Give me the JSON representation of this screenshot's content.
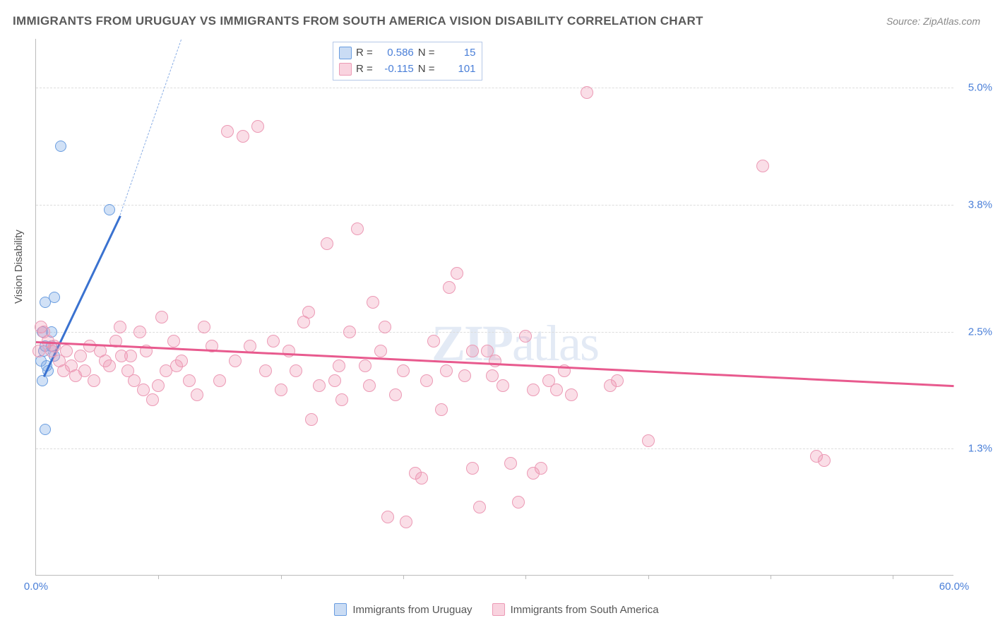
{
  "header": {
    "title": "IMMIGRANTS FROM URUGUAY VS IMMIGRANTS FROM SOUTH AMERICA VISION DISABILITY CORRELATION CHART",
    "source": "Source: ZipAtlas.com"
  },
  "chart": {
    "type": "scatter",
    "ylabel": "Vision Disability",
    "watermark": "ZIPatlas",
    "background_color": "#ffffff",
    "grid_color": "#dddddd",
    "axis_color": "#bbbbbb",
    "tick_color": "#4a7fd8",
    "xlim": [
      0,
      60
    ],
    "ylim": [
      0,
      5.5
    ],
    "xticks": [
      {
        "pos": 0,
        "label": "0.0%"
      },
      {
        "pos": 60,
        "label": "60.0%"
      }
    ],
    "xtick_marks": [
      8,
      16,
      24,
      32,
      40,
      48,
      56
    ],
    "yticks": [
      {
        "pos": 1.3,
        "label": "1.3%"
      },
      {
        "pos": 2.5,
        "label": "2.5%"
      },
      {
        "pos": 3.8,
        "label": "3.8%"
      },
      {
        "pos": 5.0,
        "label": "5.0%"
      }
    ],
    "series": [
      {
        "name": "Immigrants from Uruguay",
        "color_fill": "rgba(122,168,228,0.35)",
        "color_stroke": "#6a9de0",
        "trend_color": "#3a72d0",
        "marker_size": 16,
        "R": "0.586",
        "N": "15",
        "trend": {
          "x1": 0.5,
          "y1": 2.05,
          "x2": 5.5,
          "y2": 3.7,
          "dash_to_x": 9.5,
          "dash_to_y": 5.5
        },
        "points": [
          [
            0.6,
            2.8
          ],
          [
            1.2,
            2.85
          ],
          [
            0.4,
            2.0
          ],
          [
            0.5,
            2.3
          ],
          [
            0.6,
            1.5
          ],
          [
            0.8,
            2.1
          ],
          [
            1.0,
            2.35
          ],
          [
            1.2,
            2.25
          ],
          [
            1.6,
            4.4
          ],
          [
            4.8,
            3.75
          ],
          [
            0.4,
            2.5
          ],
          [
            0.6,
            2.35
          ],
          [
            0.3,
            2.2
          ],
          [
            0.7,
            2.15
          ],
          [
            1.0,
            2.5
          ]
        ]
      },
      {
        "name": "Immigrants from South America",
        "color_fill": "rgba(240,145,175,0.3)",
        "color_stroke": "#ec9ab5",
        "trend_color": "#e85a8e",
        "marker_size": 18,
        "R": "-0.115",
        "N": "101",
        "trend": {
          "x1": 0,
          "y1": 2.4,
          "x2": 60,
          "y2": 1.95
        },
        "points": [
          [
            0.3,
            2.55
          ],
          [
            0.5,
            2.5
          ],
          [
            0.8,
            2.4
          ],
          [
            1.0,
            2.3
          ],
          [
            1.2,
            2.35
          ],
          [
            1.5,
            2.2
          ],
          [
            1.8,
            2.1
          ],
          [
            2.0,
            2.3
          ],
          [
            2.3,
            2.15
          ],
          [
            2.6,
            2.05
          ],
          [
            2.9,
            2.25
          ],
          [
            3.2,
            2.1
          ],
          [
            3.5,
            2.35
          ],
          [
            3.8,
            2.0
          ],
          [
            4.2,
            2.3
          ],
          [
            4.5,
            2.2
          ],
          [
            4.8,
            2.15
          ],
          [
            5.2,
            2.4
          ],
          [
            5.6,
            2.25
          ],
          [
            6.0,
            2.1
          ],
          [
            6.4,
            2.0
          ],
          [
            6.8,
            2.5
          ],
          [
            7.2,
            2.3
          ],
          [
            7.6,
            1.8
          ],
          [
            8.0,
            1.95
          ],
          [
            8.5,
            2.1
          ],
          [
            9.0,
            2.4
          ],
          [
            9.5,
            2.2
          ],
          [
            10.0,
            2.0
          ],
          [
            10.5,
            1.85
          ],
          [
            11.0,
            2.55
          ],
          [
            11.5,
            2.35
          ],
          [
            12.5,
            4.55
          ],
          [
            13.5,
            4.5
          ],
          [
            14.5,
            4.6
          ],
          [
            16.0,
            1.9
          ],
          [
            16.5,
            2.3
          ],
          [
            17.0,
            2.1
          ],
          [
            17.5,
            2.6
          ],
          [
            18.0,
            1.6
          ],
          [
            18.5,
            1.95
          ],
          [
            19.0,
            3.4
          ],
          [
            19.5,
            2.0
          ],
          [
            20.0,
            1.8
          ],
          [
            20.5,
            2.5
          ],
          [
            21.0,
            3.55
          ],
          [
            21.5,
            2.15
          ],
          [
            22.0,
            2.8
          ],
          [
            22.5,
            2.3
          ],
          [
            23.0,
            0.6
          ],
          [
            23.5,
            1.85
          ],
          [
            24.0,
            2.1
          ],
          [
            24.2,
            0.55
          ],
          [
            24.8,
            1.05
          ],
          [
            25.2,
            1.0
          ],
          [
            25.5,
            2.0
          ],
          [
            26.0,
            2.4
          ],
          [
            26.5,
            1.7
          ],
          [
            27.0,
            2.95
          ],
          [
            27.5,
            3.1
          ],
          [
            28.0,
            2.05
          ],
          [
            28.5,
            1.1
          ],
          [
            29.0,
            0.7
          ],
          [
            29.5,
            2.3
          ],
          [
            30.0,
            2.2
          ],
          [
            30.5,
            1.95
          ],
          [
            31.0,
            1.15
          ],
          [
            31.5,
            0.75
          ],
          [
            32.0,
            2.45
          ],
          [
            32.5,
            1.9
          ],
          [
            33.0,
            1.1
          ],
          [
            33.5,
            2.0
          ],
          [
            34.0,
            1.9
          ],
          [
            34.5,
            2.1
          ],
          [
            35.0,
            1.85
          ],
          [
            36.0,
            4.95
          ],
          [
            37.5,
            1.95
          ],
          [
            38.0,
            2.0
          ],
          [
            40.0,
            1.38
          ],
          [
            47.5,
            4.2
          ],
          [
            51.0,
            1.22
          ],
          [
            51.5,
            1.18
          ],
          [
            5.5,
            2.55
          ],
          [
            6.2,
            2.25
          ],
          [
            7.0,
            1.9
          ],
          [
            8.2,
            2.65
          ],
          [
            9.2,
            2.15
          ],
          [
            12.0,
            2.0
          ],
          [
            13.0,
            2.2
          ],
          [
            14.0,
            2.35
          ],
          [
            15.0,
            2.1
          ],
          [
            15.5,
            2.4
          ],
          [
            17.8,
            2.7
          ],
          [
            19.8,
            2.15
          ],
          [
            21.8,
            1.95
          ],
          [
            22.8,
            2.55
          ],
          [
            26.8,
            2.1
          ],
          [
            28.5,
            2.3
          ],
          [
            29.8,
            2.05
          ],
          [
            32.5,
            1.05
          ],
          [
            0.2,
            2.3
          ]
        ]
      }
    ]
  },
  "legend": {
    "stats_labels": {
      "r": "R =",
      "n": "N ="
    }
  }
}
